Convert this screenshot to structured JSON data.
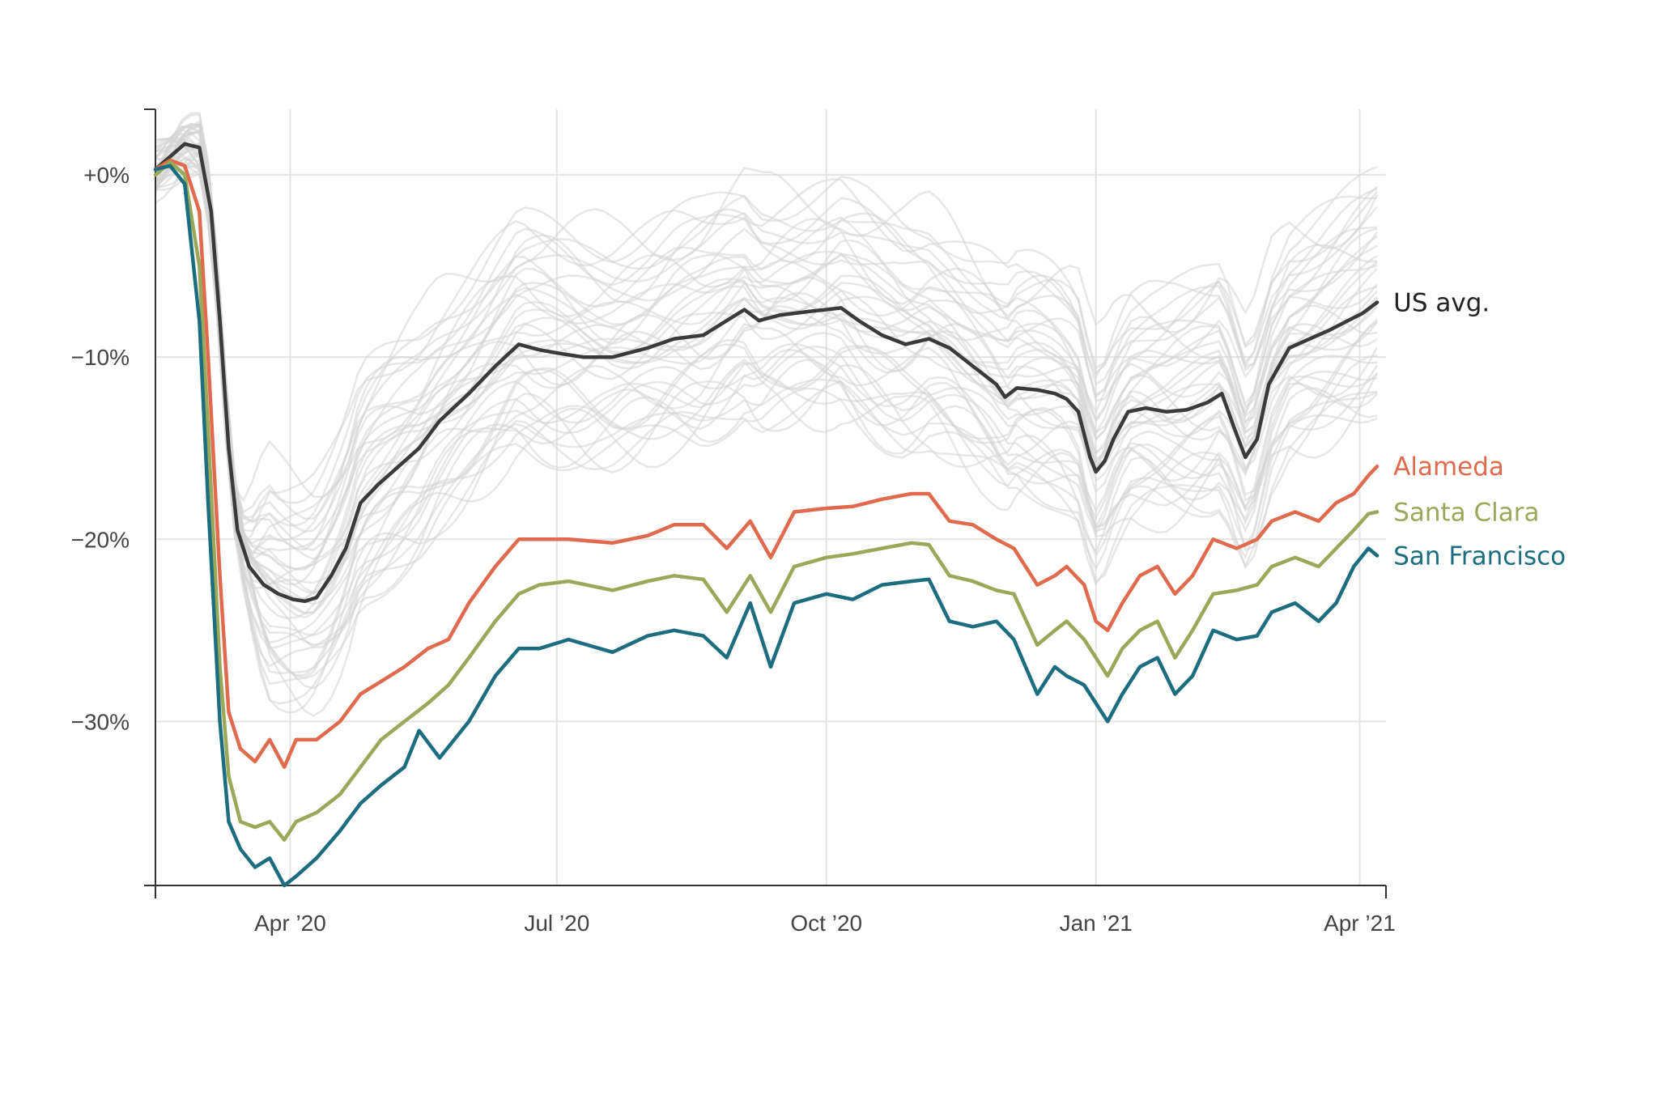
{
  "chart_data": {
    "type": "line",
    "title": "",
    "xlabel": "",
    "ylabel": "",
    "x_domain": [
      "2020-02-15",
      "2021-04-10"
    ],
    "ylim": [
      -39,
      3.6
    ],
    "grid": true,
    "legend": "direct labels at line ends (right)",
    "x_ticks": [
      {
        "date": "2020-04-01",
        "label": "Apr ’20"
      },
      {
        "date": "2020-07-01",
        "label": "Jul ’20"
      },
      {
        "date": "2020-10-01",
        "label": "Oct ’20"
      },
      {
        "date": "2021-01-01",
        "label": "Jan ’21"
      },
      {
        "date": "2021-04-01",
        "label": "Apr ’21"
      }
    ],
    "y_ticks": [
      {
        "value": 0,
        "label": "+0%"
      },
      {
        "value": -10,
        "label": "−10%"
      },
      {
        "value": -20,
        "label": "−20%"
      },
      {
        "value": -30,
        "label": "−30%"
      }
    ],
    "background_series_note_color": "#d3d3d3",
    "series": [
      {
        "name": "US avg.",
        "color": "#3a3a3a",
        "points": [
          [
            "2020-02-15",
            0.3
          ],
          [
            "2020-02-20",
            1.0
          ],
          [
            "2020-02-25",
            1.7
          ],
          [
            "2020-03-01",
            1.5
          ],
          [
            "2020-03-05",
            -2.0
          ],
          [
            "2020-03-08",
            -8.0
          ],
          [
            "2020-03-11",
            -15.0
          ],
          [
            "2020-03-14",
            -19.5
          ],
          [
            "2020-03-18",
            -21.5
          ],
          [
            "2020-03-23",
            -22.5
          ],
          [
            "2020-03-28",
            -23.0
          ],
          [
            "2020-04-02",
            -23.3
          ],
          [
            "2020-04-06",
            -23.4
          ],
          [
            "2020-04-10",
            -23.2
          ],
          [
            "2020-04-15",
            -22.0
          ],
          [
            "2020-04-20",
            -20.5
          ],
          [
            "2020-04-25",
            -18.0
          ],
          [
            "2020-05-01",
            -17.0
          ],
          [
            "2020-05-08",
            -16.0
          ],
          [
            "2020-05-15",
            -15.0
          ],
          [
            "2020-05-22",
            -13.5
          ],
          [
            "2020-06-01",
            -12.0
          ],
          [
            "2020-06-10",
            -10.5
          ],
          [
            "2020-06-18",
            -9.3
          ],
          [
            "2020-06-25",
            -9.6
          ],
          [
            "2020-07-02",
            -9.8
          ],
          [
            "2020-07-10",
            -10.0
          ],
          [
            "2020-07-20",
            -10.0
          ],
          [
            "2020-08-01",
            -9.5
          ],
          [
            "2020-08-10",
            -9.0
          ],
          [
            "2020-08-20",
            -8.8
          ],
          [
            "2020-08-28",
            -8.0
          ],
          [
            "2020-09-03",
            -7.4
          ],
          [
            "2020-09-08",
            -8.0
          ],
          [
            "2020-09-15",
            -7.7
          ],
          [
            "2020-09-25",
            -7.5
          ],
          [
            "2020-10-06",
            -7.3
          ],
          [
            "2020-10-12",
            -8.0
          ],
          [
            "2020-10-20",
            -8.8
          ],
          [
            "2020-10-28",
            -9.3
          ],
          [
            "2020-11-05",
            -9.0
          ],
          [
            "2020-11-12",
            -9.5
          ],
          [
            "2020-11-20",
            -10.5
          ],
          [
            "2020-11-28",
            -11.5
          ],
          [
            "2020-12-01",
            -12.2
          ],
          [
            "2020-12-05",
            -11.7
          ],
          [
            "2020-12-12",
            -11.8
          ],
          [
            "2020-12-18",
            -12.0
          ],
          [
            "2020-12-22",
            -12.3
          ],
          [
            "2020-12-26",
            -13.0
          ],
          [
            "2020-12-30",
            -15.5
          ],
          [
            "2021-01-01",
            -16.3
          ],
          [
            "2021-01-04",
            -15.7
          ],
          [
            "2021-01-07",
            -14.5
          ],
          [
            "2021-01-12",
            -13.0
          ],
          [
            "2021-01-18",
            -12.8
          ],
          [
            "2021-01-25",
            -13.0
          ],
          [
            "2021-02-01",
            -12.9
          ],
          [
            "2021-02-08",
            -12.5
          ],
          [
            "2021-02-13",
            -12.0
          ],
          [
            "2021-02-17",
            -13.8
          ],
          [
            "2021-02-21",
            -15.5
          ],
          [
            "2021-02-25",
            -14.5
          ],
          [
            "2021-03-01",
            -11.5
          ],
          [
            "2021-03-08",
            -9.5
          ],
          [
            "2021-03-15",
            -9.0
          ],
          [
            "2021-03-22",
            -8.5
          ],
          [
            "2021-03-28",
            -8.0
          ],
          [
            "2021-04-02",
            -7.6
          ],
          [
            "2021-04-07",
            -7.0
          ]
        ]
      },
      {
        "name": "Alameda",
        "color": "#e06a4e",
        "points": [
          [
            "2020-02-15",
            0.3
          ],
          [
            "2020-02-20",
            0.8
          ],
          [
            "2020-02-25",
            0.5
          ],
          [
            "2020-03-01",
            -2.0
          ],
          [
            "2020-03-04",
            -10.0
          ],
          [
            "2020-03-08",
            -22.0
          ],
          [
            "2020-03-11",
            -29.5
          ],
          [
            "2020-03-15",
            -31.5
          ],
          [
            "2020-03-20",
            -32.2
          ],
          [
            "2020-03-25",
            -31.0
          ],
          [
            "2020-03-30",
            -32.5
          ],
          [
            "2020-04-03",
            -31.0
          ],
          [
            "2020-04-10",
            -31.0
          ],
          [
            "2020-04-18",
            -30.0
          ],
          [
            "2020-04-25",
            -28.5
          ],
          [
            "2020-05-02",
            -27.8
          ],
          [
            "2020-05-10",
            -27.0
          ],
          [
            "2020-05-18",
            -26.0
          ],
          [
            "2020-05-25",
            -25.5
          ],
          [
            "2020-06-01",
            -23.5
          ],
          [
            "2020-06-10",
            -21.5
          ],
          [
            "2020-06-18",
            -20.0
          ],
          [
            "2020-06-25",
            -20.0
          ],
          [
            "2020-07-05",
            -20.0
          ],
          [
            "2020-07-20",
            -20.2
          ],
          [
            "2020-08-01",
            -19.8
          ],
          [
            "2020-08-10",
            -19.2
          ],
          [
            "2020-08-20",
            -19.2
          ],
          [
            "2020-08-28",
            -20.5
          ],
          [
            "2020-09-05",
            -19.0
          ],
          [
            "2020-09-12",
            -21.0
          ],
          [
            "2020-09-20",
            -18.5
          ],
          [
            "2020-10-01",
            -18.3
          ],
          [
            "2020-10-10",
            -18.2
          ],
          [
            "2020-10-20",
            -17.8
          ],
          [
            "2020-10-30",
            -17.5
          ],
          [
            "2020-11-05",
            -17.5
          ],
          [
            "2020-11-12",
            -19.0
          ],
          [
            "2020-11-20",
            -19.2
          ],
          [
            "2020-11-28",
            -20.0
          ],
          [
            "2020-12-04",
            -20.5
          ],
          [
            "2020-12-12",
            -22.5
          ],
          [
            "2020-12-18",
            -22.0
          ],
          [
            "2020-12-22",
            -21.5
          ],
          [
            "2020-12-28",
            -22.5
          ],
          [
            "2021-01-01",
            -24.5
          ],
          [
            "2021-01-05",
            -25.0
          ],
          [
            "2021-01-10",
            -23.5
          ],
          [
            "2021-01-16",
            -22.0
          ],
          [
            "2021-01-22",
            -21.5
          ],
          [
            "2021-01-28",
            -23.0
          ],
          [
            "2021-02-03",
            -22.0
          ],
          [
            "2021-02-10",
            -20.0
          ],
          [
            "2021-02-18",
            -20.5
          ],
          [
            "2021-02-25",
            -20.0
          ],
          [
            "2021-03-02",
            -19.0
          ],
          [
            "2021-03-10",
            -18.5
          ],
          [
            "2021-03-18",
            -19.0
          ],
          [
            "2021-03-24",
            -18.0
          ],
          [
            "2021-03-30",
            -17.5
          ],
          [
            "2021-04-04",
            -16.5
          ],
          [
            "2021-04-07",
            -16.0
          ]
        ]
      },
      {
        "name": "Santa Clara",
        "color": "#9aa85a",
        "points": [
          [
            "2020-02-15",
            0.0
          ],
          [
            "2020-02-20",
            0.7
          ],
          [
            "2020-02-25",
            0.0
          ],
          [
            "2020-03-01",
            -5.0
          ],
          [
            "2020-03-04",
            -14.0
          ],
          [
            "2020-03-08",
            -27.0
          ],
          [
            "2020-03-11",
            -33.0
          ],
          [
            "2020-03-15",
            -35.5
          ],
          [
            "2020-03-20",
            -35.8
          ],
          [
            "2020-03-25",
            -35.5
          ],
          [
            "2020-03-30",
            -36.5
          ],
          [
            "2020-04-03",
            -35.5
          ],
          [
            "2020-04-10",
            -35.0
          ],
          [
            "2020-04-18",
            -34.0
          ],
          [
            "2020-04-25",
            -32.5
          ],
          [
            "2020-05-02",
            -31.0
          ],
          [
            "2020-05-10",
            -30.0
          ],
          [
            "2020-05-18",
            -29.0
          ],
          [
            "2020-05-25",
            -28.0
          ],
          [
            "2020-06-01",
            -26.5
          ],
          [
            "2020-06-10",
            -24.5
          ],
          [
            "2020-06-18",
            -23.0
          ],
          [
            "2020-06-25",
            -22.5
          ],
          [
            "2020-07-05",
            -22.3
          ],
          [
            "2020-07-20",
            -22.8
          ],
          [
            "2020-08-01",
            -22.3
          ],
          [
            "2020-08-10",
            -22.0
          ],
          [
            "2020-08-20",
            -22.2
          ],
          [
            "2020-08-28",
            -24.0
          ],
          [
            "2020-09-05",
            -22.0
          ],
          [
            "2020-09-12",
            -24.0
          ],
          [
            "2020-09-20",
            -21.5
          ],
          [
            "2020-10-01",
            -21.0
          ],
          [
            "2020-10-10",
            -20.8
          ],
          [
            "2020-10-20",
            -20.5
          ],
          [
            "2020-10-30",
            -20.2
          ],
          [
            "2020-11-05",
            -20.3
          ],
          [
            "2020-11-12",
            -22.0
          ],
          [
            "2020-11-20",
            -22.3
          ],
          [
            "2020-11-28",
            -22.8
          ],
          [
            "2020-12-04",
            -23.0
          ],
          [
            "2020-12-12",
            -25.8
          ],
          [
            "2020-12-18",
            -25.0
          ],
          [
            "2020-12-22",
            -24.5
          ],
          [
            "2020-12-28",
            -25.5
          ],
          [
            "2021-01-01",
            -26.5
          ],
          [
            "2021-01-05",
            -27.5
          ],
          [
            "2021-01-10",
            -26.0
          ],
          [
            "2021-01-16",
            -25.0
          ],
          [
            "2021-01-22",
            -24.5
          ],
          [
            "2021-01-28",
            -26.5
          ],
          [
            "2021-02-03",
            -25.0
          ],
          [
            "2021-02-10",
            -23.0
          ],
          [
            "2021-02-18",
            -22.8
          ],
          [
            "2021-02-25",
            -22.5
          ],
          [
            "2021-03-02",
            -21.5
          ],
          [
            "2021-03-10",
            -21.0
          ],
          [
            "2021-03-18",
            -21.5
          ],
          [
            "2021-03-24",
            -20.5
          ],
          [
            "2021-03-30",
            -19.5
          ],
          [
            "2021-04-04",
            -18.6
          ],
          [
            "2021-04-07",
            -18.5
          ]
        ]
      },
      {
        "name": "San Francisco",
        "color": "#1b6d7f",
        "points": [
          [
            "2020-02-15",
            0.3
          ],
          [
            "2020-02-20",
            0.5
          ],
          [
            "2020-02-25",
            -0.5
          ],
          [
            "2020-03-01",
            -8.0
          ],
          [
            "2020-03-04",
            -18.0
          ],
          [
            "2020-03-08",
            -30.0
          ],
          [
            "2020-03-11",
            -35.5
          ],
          [
            "2020-03-15",
            -37.0
          ],
          [
            "2020-03-20",
            -38.0
          ],
          [
            "2020-03-25",
            -37.5
          ],
          [
            "2020-03-30",
            -39.0
          ],
          [
            "2020-04-03",
            -38.5
          ],
          [
            "2020-04-10",
            -37.5
          ],
          [
            "2020-04-18",
            -36.0
          ],
          [
            "2020-04-25",
            -34.5
          ],
          [
            "2020-05-02",
            -33.5
          ],
          [
            "2020-05-10",
            -32.5
          ],
          [
            "2020-05-15",
            -30.5
          ],
          [
            "2020-05-22",
            -32.0
          ],
          [
            "2020-06-01",
            -30.0
          ],
          [
            "2020-06-10",
            -27.5
          ],
          [
            "2020-06-18",
            -26.0
          ],
          [
            "2020-06-25",
            -26.0
          ],
          [
            "2020-07-05",
            -25.5
          ],
          [
            "2020-07-20",
            -26.2
          ],
          [
            "2020-08-01",
            -25.3
          ],
          [
            "2020-08-10",
            -25.0
          ],
          [
            "2020-08-20",
            -25.3
          ],
          [
            "2020-08-28",
            -26.5
          ],
          [
            "2020-09-05",
            -23.5
          ],
          [
            "2020-09-12",
            -27.0
          ],
          [
            "2020-09-20",
            -23.5
          ],
          [
            "2020-10-01",
            -23.0
          ],
          [
            "2020-10-10",
            -23.3
          ],
          [
            "2020-10-20",
            -22.5
          ],
          [
            "2020-10-30",
            -22.3
          ],
          [
            "2020-11-05",
            -22.2
          ],
          [
            "2020-11-12",
            -24.5
          ],
          [
            "2020-11-20",
            -24.8
          ],
          [
            "2020-11-28",
            -24.5
          ],
          [
            "2020-12-04",
            -25.5
          ],
          [
            "2020-12-12",
            -28.5
          ],
          [
            "2020-12-18",
            -27.0
          ],
          [
            "2020-12-22",
            -27.5
          ],
          [
            "2020-12-28",
            -28.0
          ],
          [
            "2021-01-01",
            -29.0
          ],
          [
            "2021-01-05",
            -30.0
          ],
          [
            "2021-01-10",
            -28.5
          ],
          [
            "2021-01-16",
            -27.0
          ],
          [
            "2021-01-22",
            -26.5
          ],
          [
            "2021-01-28",
            -28.5
          ],
          [
            "2021-02-03",
            -27.5
          ],
          [
            "2021-02-10",
            -25.0
          ],
          [
            "2021-02-18",
            -25.5
          ],
          [
            "2021-02-25",
            -25.3
          ],
          [
            "2021-03-02",
            -24.0
          ],
          [
            "2021-03-10",
            -23.5
          ],
          [
            "2021-03-18",
            -24.5
          ],
          [
            "2021-03-24",
            -23.5
          ],
          [
            "2021-03-30",
            -21.5
          ],
          [
            "2021-04-04",
            -20.5
          ],
          [
            "2021-04-07",
            -20.9
          ]
        ]
      }
    ]
  }
}
